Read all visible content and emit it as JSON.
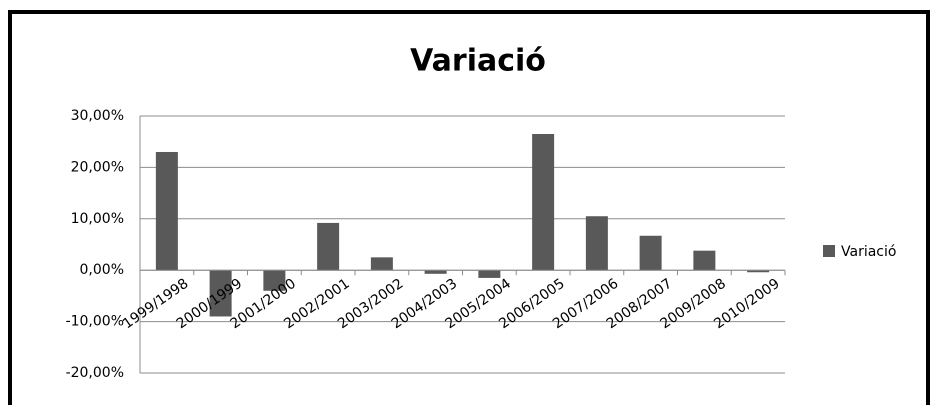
{
  "chart_data": {
    "type": "bar",
    "title": "Variació",
    "categories": [
      "1999/1998",
      "2000/1999",
      "2001/2000",
      "2002/2001",
      "2003/2002",
      "2004/2003",
      "2005/2004",
      "2006/2005",
      "2007/2006",
      "2008/2007",
      "2009/2008",
      "2010/2009"
    ],
    "series": [
      {
        "name": "Variació",
        "color": "#595959",
        "values": [
          23,
          -9,
          -4,
          9.2,
          2.5,
          -0.7,
          -1.5,
          26.5,
          10.5,
          6.7,
          3.8,
          -0.4
        ]
      }
    ],
    "ylim": [
      -20,
      30
    ],
    "yticks": [
      {
        "value": -20,
        "label": "-20,00%"
      },
      {
        "value": -10,
        "label": "-10,00%"
      },
      {
        "value": 0,
        "label": "0,00%"
      },
      {
        "value": 10,
        "label": "10,00%"
      },
      {
        "value": 20,
        "label": "20,00%"
      },
      {
        "value": 30,
        "label": "30,00%"
      }
    ],
    "grid": true,
    "legend": "right"
  }
}
